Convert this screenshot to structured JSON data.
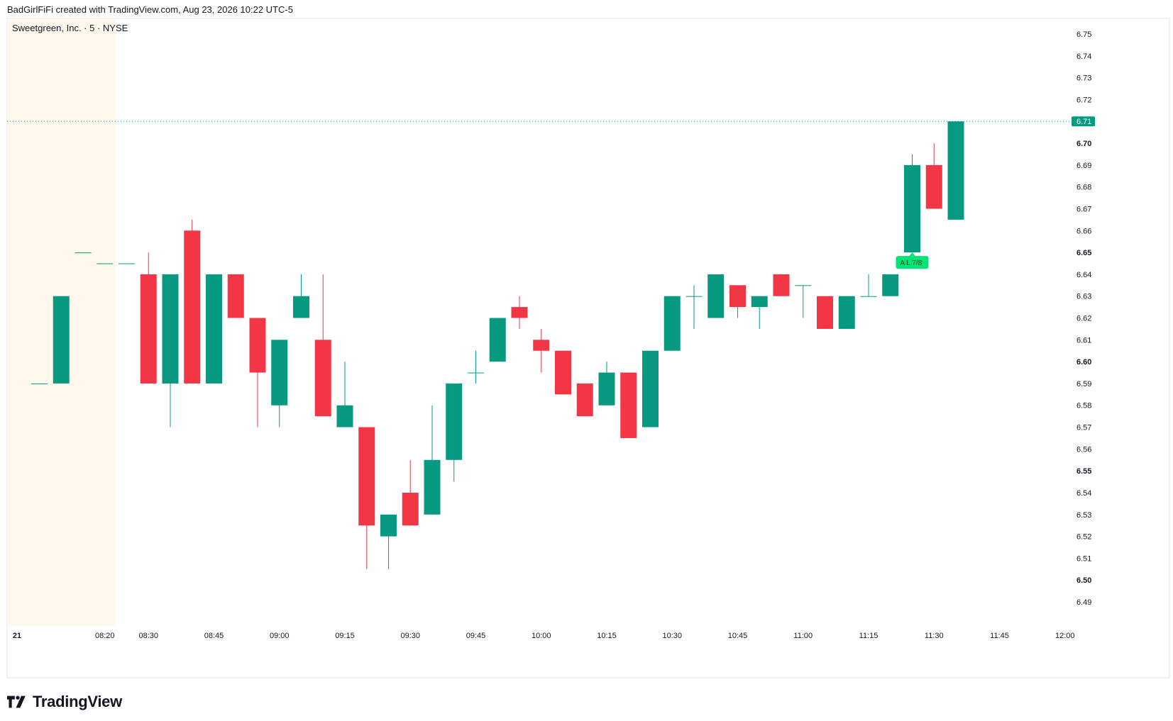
{
  "header": {
    "attribution": "BadGirlFiFi created with TradingView.com, Aug 23, 2026 10:22 UTC-5"
  },
  "footer": {
    "logo_text": "TradingView",
    "logo_icon": "tradingview-logo-icon"
  },
  "colors": {
    "up": "#089981",
    "down": "#F23645",
    "premarket_bg": "#FFF8EC",
    "last_price_tag": "#089981",
    "alert_tag": "#00E676",
    "grid": "#E0E3EB",
    "axis_text": "#131722"
  },
  "chart_data": {
    "type": "candlestick",
    "symbol_label": "Sweetgreen, Inc. · 5 · NYSE",
    "interval": "5",
    "ylim": [
      6.485,
      6.755
    ],
    "y_ticks": [
      "6.75",
      "6.74",
      "6.73",
      "6.72",
      "6.70",
      "6.69",
      "6.68",
      "6.67",
      "6.66",
      "6.65",
      "6.64",
      "6.63",
      "6.62",
      "6.61",
      "6.60",
      "6.59",
      "6.58",
      "6.57",
      "6.56",
      "6.55",
      "6.54",
      "6.53",
      "6.52",
      "6.51",
      "6.50",
      "6.49"
    ],
    "y_ticks_bold": [
      "6.70",
      "6.65",
      "6.60",
      "6.55",
      "6.50"
    ],
    "x_ticks": [
      {
        "label": "21",
        "index": 0,
        "bold": true
      },
      {
        "label": "08:20",
        "index": 3
      },
      {
        "label": "08:30",
        "index": 5
      },
      {
        "label": "08:45",
        "index": 8
      },
      {
        "label": "09:00",
        "index": 11
      },
      {
        "label": "09:15",
        "index": 14
      },
      {
        "label": "09:30",
        "index": 17
      },
      {
        "label": "09:45",
        "index": 20
      },
      {
        "label": "10:00",
        "index": 23
      },
      {
        "label": "10:15",
        "index": 26
      },
      {
        "label": "10:30",
        "index": 29
      },
      {
        "label": "10:45",
        "index": 32
      },
      {
        "label": "11:00",
        "index": 35
      },
      {
        "label": "11:15",
        "index": 38
      },
      {
        "label": "11:30",
        "index": 41
      },
      {
        "label": "11:45",
        "index": 44
      },
      {
        "label": "12:00",
        "index": 47
      }
    ],
    "premarket_bars": 5,
    "last_price": "6.71",
    "alert_label": "A  L 7/8",
    "alert_bar_index": 40,
    "alert_price": 6.65,
    "candles": [
      {
        "o": 6.59,
        "h": 6.59,
        "l": 6.59,
        "c": 6.59
      },
      {
        "o": 6.59,
        "h": 6.63,
        "l": 6.59,
        "c": 6.63
      },
      {
        "o": 6.65,
        "h": 6.65,
        "l": 6.65,
        "c": 6.65
      },
      {
        "o": 6.645,
        "h": 6.645,
        "l": 6.645,
        "c": 6.645
      },
      {
        "o": 6.645,
        "h": 6.645,
        "l": 6.645,
        "c": 6.645
      },
      {
        "o": 6.64,
        "h": 6.65,
        "l": 6.59,
        "c": 6.59
      },
      {
        "o": 6.59,
        "h": 6.64,
        "l": 6.57,
        "c": 6.64
      },
      {
        "o": 6.66,
        "h": 6.665,
        "l": 6.59,
        "c": 6.59
      },
      {
        "o": 6.59,
        "h": 6.64,
        "l": 6.59,
        "c": 6.64
      },
      {
        "o": 6.64,
        "h": 6.64,
        "l": 6.62,
        "c": 6.62
      },
      {
        "o": 6.62,
        "h": 6.62,
        "l": 6.57,
        "c": 6.595
      },
      {
        "o": 6.58,
        "h": 6.61,
        "l": 6.57,
        "c": 6.61
      },
      {
        "o": 6.62,
        "h": 6.64,
        "l": 6.62,
        "c": 6.63
      },
      {
        "o": 6.61,
        "h": 6.64,
        "l": 6.575,
        "c": 6.575
      },
      {
        "o": 6.57,
        "h": 6.6,
        "l": 6.57,
        "c": 6.58
      },
      {
        "o": 6.57,
        "h": 6.57,
        "l": 6.505,
        "c": 6.525
      },
      {
        "o": 6.52,
        "h": 6.53,
        "l": 6.505,
        "c": 6.53
      },
      {
        "o": 6.54,
        "h": 6.555,
        "l": 6.525,
        "c": 6.525
      },
      {
        "o": 6.53,
        "h": 6.58,
        "l": 6.53,
        "c": 6.555
      },
      {
        "o": 6.555,
        "h": 6.59,
        "l": 6.545,
        "c": 6.59
      },
      {
        "o": 6.595,
        "h": 6.605,
        "l": 6.59,
        "c": 6.595
      },
      {
        "o": 6.6,
        "h": 6.62,
        "l": 6.6,
        "c": 6.62
      },
      {
        "o": 6.625,
        "h": 6.63,
        "l": 6.615,
        "c": 6.62
      },
      {
        "o": 6.61,
        "h": 6.615,
        "l": 6.595,
        "c": 6.605
      },
      {
        "o": 6.605,
        "h": 6.605,
        "l": 6.585,
        "c": 6.585
      },
      {
        "o": 6.59,
        "h": 6.59,
        "l": 6.575,
        "c": 6.575
      },
      {
        "o": 6.58,
        "h": 6.6,
        "l": 6.58,
        "c": 6.595
      },
      {
        "o": 6.595,
        "h": 6.595,
        "l": 6.565,
        "c": 6.565
      },
      {
        "o": 6.57,
        "h": 6.605,
        "l": 6.57,
        "c": 6.605
      },
      {
        "o": 6.605,
        "h": 6.63,
        "l": 6.605,
        "c": 6.63
      },
      {
        "o": 6.63,
        "h": 6.635,
        "l": 6.615,
        "c": 6.63
      },
      {
        "o": 6.62,
        "h": 6.64,
        "l": 6.62,
        "c": 6.64
      },
      {
        "o": 6.635,
        "h": 6.635,
        "l": 6.62,
        "c": 6.625
      },
      {
        "o": 6.625,
        "h": 6.63,
        "l": 6.615,
        "c": 6.63
      },
      {
        "o": 6.64,
        "h": 6.64,
        "l": 6.63,
        "c": 6.63
      },
      {
        "o": 6.635,
        "h": 6.635,
        "l": 6.62,
        "c": 6.635
      },
      {
        "o": 6.63,
        "h": 6.63,
        "l": 6.615,
        "c": 6.615
      },
      {
        "o": 6.615,
        "h": 6.63,
        "l": 6.615,
        "c": 6.63
      },
      {
        "o": 6.63,
        "h": 6.64,
        "l": 6.63,
        "c": 6.63
      },
      {
        "o": 6.63,
        "h": 6.64,
        "l": 6.63,
        "c": 6.64
      },
      {
        "o": 6.65,
        "h": 6.695,
        "l": 6.65,
        "c": 6.69
      },
      {
        "o": 6.69,
        "h": 6.7,
        "l": 6.67,
        "c": 6.67
      },
      {
        "o": 6.665,
        "h": 6.71,
        "l": 6.665,
        "c": 6.71
      }
    ]
  }
}
